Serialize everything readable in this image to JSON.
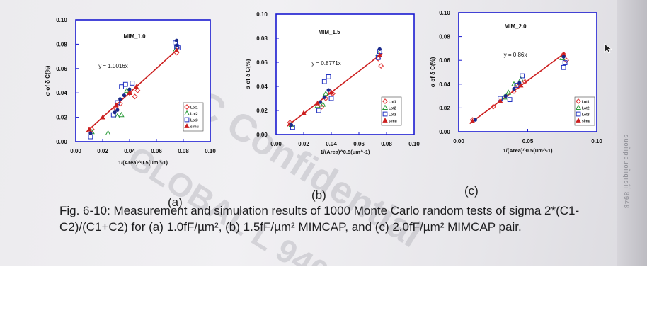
{
  "caption": "Fig. 6-10: Measurement and simulation results of 1000 Monte Carlo random tests of sigma 2*(C1-C2)/(C1+C2) for (a) 1.0fF/µm², (b) 1.5fF/µm² MIMCAP, and (c) 2.0fF/µm² MIMCAP pair.",
  "watermark": {
    "line1": "TSMC Confidential",
    "line2": "GLOBAL L 940"
  },
  "side_text": "suoı̂ıpəuoı̂ıqısı̂ı́ 8948",
  "legend_entries": [
    "Lot1",
    "Lot2",
    "Lot3",
    "simu"
  ],
  "chart_data": [
    {
      "type": "scatter",
      "panel_label": "(a)",
      "title": "MIM_1.0",
      "fit_label": "y = 1.0016x",
      "slope": 1.0016,
      "xlabel": "1/(Area)^0.5(um^-1)",
      "ylabel": "σ of δ C(%)",
      "xlim": [
        0,
        0.1
      ],
      "ylim": [
        0,
        0.1
      ],
      "xticks": [
        "0.00",
        "0.02",
        "0.04",
        "0.06",
        "0.08",
        "0.10"
      ],
      "yticks": [
        "0.00",
        "0.02",
        "0.04",
        "0.06",
        "0.08",
        "0.10"
      ],
      "series": [
        {
          "name": "Lot1",
          "marker": "diamond",
          "color": "#e03030",
          "points": [
            [
              0.012,
              0.01
            ],
            [
              0.03,
              0.027
            ],
            [
              0.033,
              0.031
            ],
            [
              0.04,
              0.04
            ],
            [
              0.044,
              0.037
            ],
            [
              0.046,
              0.042
            ],
            [
              0.075,
              0.073
            ]
          ]
        },
        {
          "name": "Lot2",
          "marker": "triangle-open",
          "color": "#2a9a3a",
          "points": [
            [
              0.012,
              0.008
            ],
            [
              0.024,
              0.007
            ],
            [
              0.031,
              0.021
            ],
            [
              0.034,
              0.022
            ],
            [
              0.038,
              0.042
            ],
            [
              0.074,
              0.075
            ]
          ]
        },
        {
          "name": "Lot3",
          "marker": "square-open",
          "color": "#2030c0",
          "points": [
            [
              0.011,
              0.004
            ],
            [
              0.028,
              0.022
            ],
            [
              0.031,
              0.032
            ],
            [
              0.034,
              0.045
            ],
            [
              0.037,
              0.047
            ],
            [
              0.042,
              0.048
            ],
            [
              0.074,
              0.081
            ],
            [
              0.075,
              0.078
            ],
            [
              0.076,
              0.077
            ]
          ]
        },
        {
          "name": "simu",
          "marker": "triangle-filled",
          "color": "#cc1f1f",
          "points": [
            [
              0.01,
              0.01
            ],
            [
              0.02,
              0.02
            ],
            [
              0.03,
              0.03
            ],
            [
              0.04,
              0.04
            ],
            [
              0.045,
              0.045
            ],
            [
              0.075,
              0.075
            ]
          ]
        },
        {
          "name": "",
          "marker": "dot",
          "color": "#1a2a8a",
          "points": [
            [
              0.011,
              0.007
            ],
            [
              0.029,
              0.024
            ],
            [
              0.031,
              0.026
            ],
            [
              0.033,
              0.035
            ],
            [
              0.036,
              0.038
            ],
            [
              0.04,
              0.043
            ],
            [
              0.075,
              0.079
            ],
            [
              0.075,
              0.083
            ]
          ]
        }
      ]
    },
    {
      "type": "scatter",
      "panel_label": "(b)",
      "title": "MIM_1.5",
      "fit_label": "y = 0.8771x",
      "slope": 0.8771,
      "xlabel": "1/(Area)^0.5(um^-1)",
      "ylabel": "σ of δ C(%)",
      "xlim": [
        0,
        0.1
      ],
      "ylim": [
        0,
        0.1
      ],
      "xticks": [
        "0.00",
        "0.02",
        "0.04",
        "0.06",
        "0.08",
        "0.10"
      ],
      "yticks": [
        "0.00",
        "0.02",
        "0.04",
        "0.06",
        "0.08",
        "0.10"
      ],
      "series": [
        {
          "name": "Lot1",
          "marker": "diamond",
          "color": "#e03030",
          "points": [
            [
              0.01,
              0.01
            ],
            [
              0.033,
              0.023
            ],
            [
              0.036,
              0.03
            ],
            [
              0.039,
              0.036
            ],
            [
              0.041,
              0.034
            ],
            [
              0.074,
              0.063
            ],
            [
              0.076,
              0.057
            ]
          ]
        },
        {
          "name": "Lot2",
          "marker": "triangle-open",
          "color": "#2a9a3a",
          "points": [
            [
              0.011,
              0.008
            ],
            [
              0.03,
              0.024
            ],
            [
              0.034,
              0.025
            ],
            [
              0.036,
              0.034
            ],
            [
              0.074,
              0.067
            ]
          ]
        },
        {
          "name": "Lot3",
          "marker": "square-open",
          "color": "#2030c0",
          "points": [
            [
              0.012,
              0.006
            ],
            [
              0.031,
              0.02
            ],
            [
              0.035,
              0.044
            ],
            [
              0.038,
              0.048
            ],
            [
              0.04,
              0.03
            ],
            [
              0.074,
              0.064
            ],
            [
              0.075,
              0.069
            ]
          ]
        },
        {
          "name": "simu",
          "marker": "triangle-filled",
          "color": "#cc1f1f",
          "points": [
            [
              0.01,
              0.009
            ],
            [
              0.02,
              0.018
            ],
            [
              0.03,
              0.026
            ],
            [
              0.04,
              0.035
            ],
            [
              0.075,
              0.066
            ]
          ]
        },
        {
          "name": "",
          "marker": "dot",
          "color": "#1a2a8a",
          "points": [
            [
              0.011,
              0.008
            ],
            [
              0.032,
              0.027
            ],
            [
              0.035,
              0.031
            ],
            [
              0.038,
              0.037
            ],
            [
              0.075,
              0.071
            ]
          ]
        }
      ]
    },
    {
      "type": "scatter",
      "panel_label": "(c)",
      "title": "MIM_2.0",
      "fit_label": "y = 0.86x",
      "slope": 0.86,
      "xlabel": "1/(Area)^0.5(um^-1)",
      "ylabel": "σ of δ C(%)",
      "xlim": [
        0,
        0.1
      ],
      "ylim": [
        0,
        0.1
      ],
      "xticks": [
        "0.00",
        "0.05",
        "0.10"
      ],
      "yticks": [
        "0.00",
        "0.02",
        "0.04",
        "0.06",
        "0.08",
        "0.10"
      ],
      "series": [
        {
          "name": "Lot1",
          "marker": "diamond",
          "color": "#e03030",
          "points": [
            [
              0.01,
              0.01
            ],
            [
              0.025,
              0.021
            ],
            [
              0.04,
              0.034
            ],
            [
              0.043,
              0.038
            ],
            [
              0.048,
              0.042
            ],
            [
              0.076,
              0.065
            ],
            [
              0.078,
              0.06
            ]
          ]
        },
        {
          "name": "Lot2",
          "marker": "triangle-open",
          "color": "#2a9a3a",
          "points": [
            [
              0.033,
              0.029
            ],
            [
              0.036,
              0.033
            ],
            [
              0.04,
              0.04
            ],
            [
              0.045,
              0.044
            ],
            [
              0.075,
              0.062
            ]
          ]
        },
        {
          "name": "Lot3",
          "marker": "square-open",
          "color": "#2030c0",
          "points": [
            [
              0.03,
              0.028
            ],
            [
              0.037,
              0.027
            ],
            [
              0.042,
              0.039
            ],
            [
              0.046,
              0.047
            ],
            [
              0.076,
              0.054
            ],
            [
              0.077,
              0.058
            ]
          ]
        },
        {
          "name": "simu",
          "marker": "triangle-filled",
          "color": "#cc1f1f",
          "points": [
            [
              0.01,
              0.009
            ],
            [
              0.03,
              0.026
            ],
            [
              0.045,
              0.039
            ],
            [
              0.076,
              0.065
            ]
          ]
        },
        {
          "name": "",
          "marker": "dot",
          "color": "#1a2a8a",
          "points": [
            [
              0.012,
              0.01
            ],
            [
              0.034,
              0.03
            ],
            [
              0.04,
              0.036
            ],
            [
              0.044,
              0.041
            ],
            [
              0.076,
              0.063
            ]
          ]
        }
      ]
    }
  ]
}
